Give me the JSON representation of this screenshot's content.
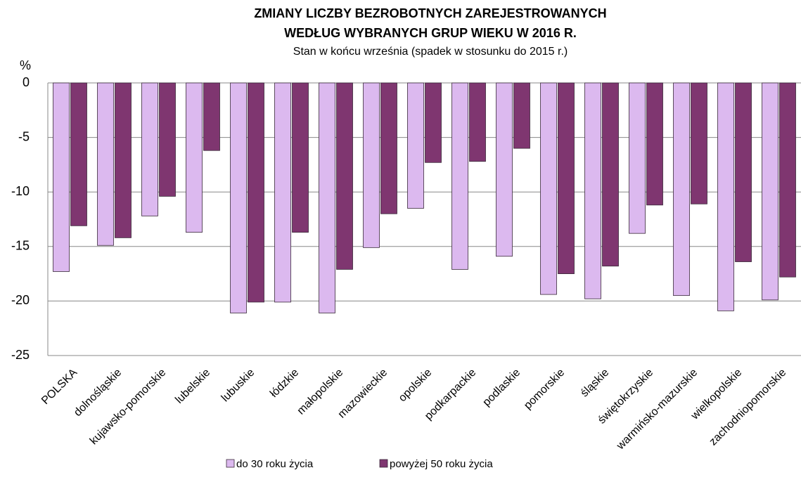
{
  "chart_data": {
    "type": "bar",
    "title": [
      "ZMIANY LICZBY BEZROBOTNYCH ZAREJESTROWANYCH",
      "WEDŁUG WYBRANYCH GRUP WIEKU W 2016 R."
    ],
    "subtitle": "Stan w końcu września (spadek w stosunku do 2015 r.)",
    "y_label": "%",
    "categories": [
      "POLSKA",
      "dolnośląskie",
      "kujawsko-pomorskie",
      "lubelskie",
      "lubuskie",
      "łódzkie",
      "małopolskie",
      "mazowieckie",
      "opolskie",
      "podkarpackie",
      "podlaskie",
      "pomorskie",
      "śląskie",
      "świętokrzyskie",
      "warmińsko-mazurskie",
      "wielkopolskie",
      "zachodniopomorskie"
    ],
    "series": [
      {
        "name": "do 30 roku życia",
        "color": "#dcb9ef",
        "values": [
          -17.3,
          -14.9,
          -12.2,
          -13.7,
          -21.1,
          -20.1,
          -21.1,
          -15.1,
          -11.5,
          -17.1,
          -15.9,
          -19.4,
          -19.8,
          -13.8,
          -19.5,
          -20.9,
          -19.9
        ]
      },
      {
        "name": "powyżej 50 roku życia",
        "color": "#7f3670",
        "values": [
          -13.1,
          -14.2,
          -10.4,
          -6.2,
          -20.1,
          -13.7,
          -17.1,
          -12.0,
          -7.3,
          -7.2,
          -6.0,
          -17.5,
          -16.8,
          -11.2,
          -11.1,
          -16.4,
          -17.8
        ]
      }
    ],
    "ylim": [
      -25,
      0
    ],
    "yticks": [
      0,
      -5,
      -10,
      -15,
      -20,
      -25
    ],
    "grid": true
  }
}
